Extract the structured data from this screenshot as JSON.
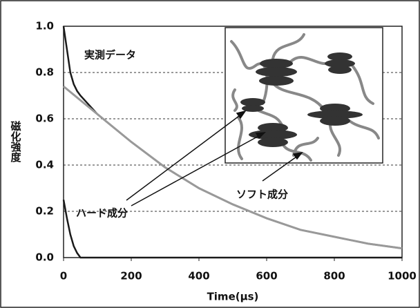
{
  "chart_data": {
    "type": "line",
    "xlabel": "Time(μs)",
    "ylabel": "磁化強度",
    "xlim": [
      0,
      1000
    ],
    "xticks": [
      0,
      200,
      400,
      600,
      800,
      1000
    ],
    "ylim": [
      0,
      1
    ],
    "yticks": [
      {
        "value": 0,
        "label": "0.0"
      },
      0.2,
      0.4,
      0.6,
      0.8,
      {
        "value": 1,
        "label": "1.0"
      }
    ],
    "grid": true,
    "series": [
      {
        "name": "実測データ",
        "color": "#1a1a1a",
        "x": [
          0,
          10,
          20,
          30,
          40,
          50,
          100,
          200,
          300,
          400,
          500,
          600,
          700,
          800,
          900,
          1000
        ],
        "values": [
          1.0,
          0.9,
          0.8,
          0.75,
          0.72,
          0.7,
          0.62,
          0.5,
          0.39,
          0.3,
          0.23,
          0.17,
          0.12,
          0.09,
          0.06,
          0.04
        ]
      },
      {
        "name": "ソフト成分",
        "color": "#999999",
        "x": [
          0,
          100,
          200,
          300,
          400,
          500,
          600,
          700,
          800,
          900,
          1000
        ],
        "values": [
          0.74,
          0.62,
          0.5,
          0.39,
          0.3,
          0.23,
          0.17,
          0.12,
          0.09,
          0.06,
          0.04
        ]
      },
      {
        "name": "ハード成分",
        "color": "#1a1a1a",
        "x": [
          0,
          10,
          20,
          30,
          40,
          50,
          100,
          1000
        ],
        "values": [
          0.25,
          0.17,
          0.1,
          0.05,
          0.02,
          0.0,
          0.0,
          0.0
        ]
      }
    ]
  }
}
